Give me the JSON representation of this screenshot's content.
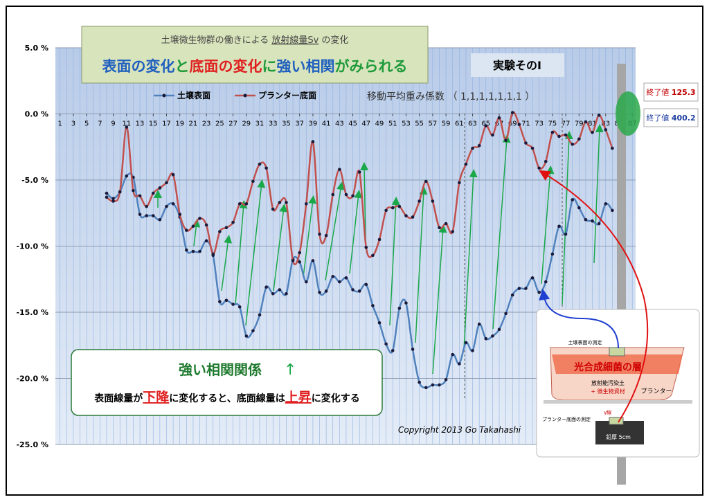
{
  "chart_data": {
    "type": "line",
    "title_parts": [
      {
        "text": "土壌微生物群の働きによる ",
        "underline": false
      },
      {
        "text": "放射線量Sv",
        "underline": true
      },
      {
        "text": " の変化",
        "underline": false
      }
    ],
    "subtitle_parts": [
      {
        "text": "表面の変化",
        "color": "#1f5fbf"
      },
      {
        "text": "と",
        "color": "#1f9a3a"
      },
      {
        "text": "底面の変化",
        "color": "#e02020"
      },
      {
        "text": "に",
        "color": "#1f9a3a"
      },
      {
        "text": "強い相関",
        "color": "#1f5fbf"
      },
      {
        "text": "がみられる",
        "color": "#1f9a3a"
      }
    ],
    "experiment_label": "実験そのⅠ",
    "weights_note": "移動平均重み係数 （ 1,1,1,1,1,1,1 ）",
    "end_values": [
      {
        "label": "終了値",
        "value": 125.3,
        "color": "#c00000"
      },
      {
        "label": "終了値",
        "value": 400.2,
        "color": "#1f3fa0"
      }
    ],
    "callout": {
      "title": "強い相関関係",
      "arrow": "↑",
      "parts": [
        {
          "text": "表面線量が",
          "color": "#000000"
        },
        {
          "text": "下降",
          "color": "#e02020"
        },
        {
          "text": "に変化すると、底面線量は",
          "color": "#000000"
        },
        {
          "text": "上昇",
          "color": "#e02020"
        },
        {
          "text": "に変化する",
          "color": "#000000"
        }
      ]
    },
    "copyright": "Copyright 2013 Go Takahashi",
    "inset": {
      "surface_measure": "土壌表面の測定",
      "bacteria_layer": "光合成細菌の層",
      "soil": "放射能汚染土",
      "material": "+ 微生物資材",
      "planter": "プランター",
      "gamma": "γ線",
      "bottom_measure": "プランター底面の測定",
      "lead": "鉛厚 5cm"
    },
    "x": [
      8,
      9,
      10,
      11,
      12,
      13,
      14,
      15,
      16,
      17,
      18,
      19,
      20,
      21,
      22,
      23,
      24,
      25,
      26,
      27,
      28,
      29,
      30,
      31,
      32,
      33,
      34,
      35,
      36,
      37,
      38,
      39,
      40,
      41,
      42,
      43,
      44,
      45,
      46,
      47,
      48,
      49,
      50,
      51,
      52,
      53,
      54,
      55,
      56,
      57,
      58,
      59,
      60,
      61,
      62,
      63,
      64,
      65,
      66,
      67,
      68,
      69,
      70,
      71,
      72,
      73,
      74,
      75,
      76,
      77,
      78,
      79,
      80,
      81,
      82,
      83,
      84
    ],
    "series": [
      {
        "name": "土壌表面",
        "color": "#4f81bd",
        "values": [
          -6.0,
          -6.4,
          -5.9,
          -4.7,
          -4.8,
          -7.6,
          -7.7,
          -7.7,
          -8.0,
          -7.0,
          -6.8,
          -7.8,
          -10.3,
          -10.4,
          -10.4,
          -9.6,
          -10.7,
          -14.2,
          -14.1,
          -14.4,
          -14.6,
          -16.8,
          -16.4,
          -15.2,
          -13.1,
          -13.6,
          -13.3,
          -13.6,
          -11.0,
          -11.2,
          -12.7,
          -11.1,
          -13.5,
          -13.4,
          -12.3,
          -12.7,
          -12.4,
          -13.3,
          -13.4,
          -12.9,
          -14.5,
          -15.8,
          -17.4,
          -17.9,
          -14.7,
          -14.3,
          -17.8,
          -20.3,
          -20.7,
          -20.5,
          -20.5,
          -20.1,
          -18.2,
          -18.9,
          -17.3,
          -17.9,
          -15.9,
          -17.0,
          -16.8,
          -16.3,
          -15.1,
          -13.7,
          -13.2,
          -13.2,
          -12.4,
          -13.5,
          -12.7,
          -10.6,
          -8.5,
          -9.1,
          -6.5,
          -7.1,
          -8.0,
          -8.1,
          -8.3,
          -6.8,
          -7.3
        ]
      },
      {
        "name": "プランター底面",
        "color": "#c0504d",
        "values": [
          -6.3,
          -6.6,
          -5.9,
          -1.0,
          -5.8,
          -6.2,
          -7.0,
          -6.0,
          -5.6,
          -5.2,
          -4.6,
          -7.6,
          -8.8,
          -8.5,
          -7.9,
          -8.4,
          -10.6,
          -8.9,
          -8.6,
          -8.2,
          -6.8,
          -6.8,
          -5.1,
          -3.8,
          -4.1,
          -7.2,
          -6.7,
          -6.7,
          -11.1,
          -10.5,
          -6.8,
          -2.1,
          -9.1,
          -9.2,
          -6.1,
          -4.2,
          -6.1,
          -6.2,
          -4.4,
          -10.1,
          -10.7,
          -9.5,
          -7.3,
          -7.1,
          -7.0,
          -7.7,
          -7.8,
          -6.6,
          -5.1,
          -6.6,
          -8.6,
          -8.3,
          -8.9,
          -5.2,
          -3.8,
          -2.6,
          -2.4,
          -0.9,
          -1.6,
          -0.3,
          -2.0,
          0.1,
          -0.8,
          -2.2,
          -2.6,
          -4.1,
          -3.6,
          -1.4,
          -1.7,
          -1.6,
          -2.3,
          -1.9,
          -0.6,
          -1.4,
          -0.1,
          -1.2,
          -2.6
        ]
      }
    ],
    "xlim": [
      0.3,
      87.5
    ],
    "xticks": [
      1,
      3,
      5,
      7,
      9,
      11,
      13,
      15,
      17,
      19,
      21,
      23,
      25,
      27,
      29,
      31,
      33,
      35,
      37,
      39,
      41,
      43,
      45,
      47,
      49,
      51,
      53,
      55,
      57,
      59,
      61,
      63,
      65,
      67,
      69,
      71,
      73,
      75,
      77,
      79,
      81,
      83,
      85,
      87
    ],
    "ylim": [
      -25,
      5
    ],
    "yticks": [
      {
        "value": 5,
        "label": "5.0 %"
      },
      {
        "value": 0,
        "label": "0.0 %"
      },
      {
        "value": -5,
        "label": "-5.0 %"
      },
      {
        "value": -10,
        "label": "-10.0 %"
      },
      {
        "value": -15,
        "label": "-15.0 %"
      },
      {
        "value": -20,
        "label": "-20.0 %"
      },
      {
        "value": -25,
        "label": "-25.0 %"
      }
    ],
    "grid": true,
    "legend": "top"
  }
}
